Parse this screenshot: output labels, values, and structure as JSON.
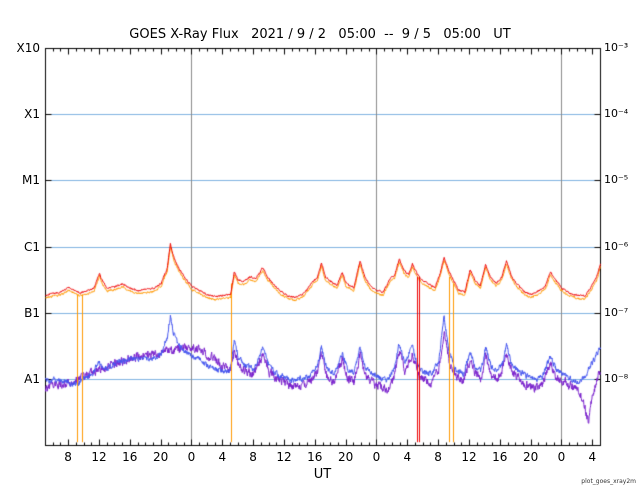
{
  "title": "GOES X-Ray Flux   2021 / 9 / 2   05:00  --  9 / 5   05:00   UT",
  "xlabel": "UT",
  "watermark": "plot_goes_xray2m",
  "colors": {
    "long_primary": "#ee0000",
    "long_secondary": "#ff9900",
    "short_primary": "#4455ee",
    "short_secondary": "#7a22cc",
    "hgrid": "#7fb2e0",
    "day_grid": "#8a8a8a",
    "frame": "#000000",
    "background": "#ffffff"
  },
  "axes": {
    "x_range_hours": [
      0,
      72
    ],
    "y_log_range": [
      -9,
      -3
    ],
    "left_labels": [
      {
        "text": "X10",
        "log": -3
      },
      {
        "text": "X1",
        "log": -4
      },
      {
        "text": "M1",
        "log": -5
      },
      {
        "text": "C1",
        "log": -6
      },
      {
        "text": "B1",
        "log": -7
      },
      {
        "text": "A1",
        "log": -8
      }
    ],
    "right_labels": [
      {
        "text": "10⁻³",
        "log": -3
      },
      {
        "text": "10⁻⁴",
        "log": -4
      },
      {
        "text": "10⁻⁵",
        "log": -5
      },
      {
        "text": "10⁻⁶",
        "log": -6
      },
      {
        "text": "10⁻⁷",
        "log": -7
      },
      {
        "text": "10⁻⁸",
        "log": -8
      }
    ],
    "x_ticks": [
      {
        "hour": 3,
        "label": "8"
      },
      {
        "hour": 7,
        "label": "12"
      },
      {
        "hour": 11,
        "label": "16"
      },
      {
        "hour": 15,
        "label": "20"
      },
      {
        "hour": 19,
        "label": "0"
      },
      {
        "hour": 23,
        "label": "4"
      },
      {
        "hour": 27,
        "label": "8"
      },
      {
        "hour": 31,
        "label": "12"
      },
      {
        "hour": 35,
        "label": "16"
      },
      {
        "hour": 39,
        "label": "20"
      },
      {
        "hour": 43,
        "label": "0"
      },
      {
        "hour": 47,
        "label": "4"
      },
      {
        "hour": 51,
        "label": "8"
      },
      {
        "hour": 55,
        "label": "12"
      },
      {
        "hour": 59,
        "label": "16"
      },
      {
        "hour": 63,
        "label": "20"
      },
      {
        "hour": 67,
        "label": "0"
      },
      {
        "hour": 71,
        "label": "4"
      }
    ],
    "day_lines_hours": [
      19,
      43,
      67
    ],
    "hgrid_logs": [
      -4,
      -5,
      -6,
      -7,
      -8
    ]
  },
  "chart_data": {
    "type": "line",
    "x_definition": "hours after 2021-09-02 05:00 UT (range of plot, 72 h total)",
    "y_definition": "log10 of X-ray flux, W/m^2, log axis 10^-9 .. 10^-3",
    "series": [
      {
        "name": "short-secondary",
        "color": "#7a22cc",
        "noise": 0.11,
        "points": [
          [
            0,
            -8.12
          ],
          [
            1,
            -8.1
          ],
          [
            2,
            -8.08
          ],
          [
            3,
            -8.05
          ],
          [
            4,
            -8.02
          ],
          [
            5,
            -7.96
          ],
          [
            6,
            -7.9
          ],
          [
            7,
            -7.85
          ],
          [
            8,
            -7.82
          ],
          [
            9,
            -7.76
          ],
          [
            10,
            -7.72
          ],
          [
            11,
            -7.68
          ],
          [
            12,
            -7.66
          ],
          [
            13,
            -7.63
          ],
          [
            14,
            -7.61
          ],
          [
            15,
            -7.59
          ],
          [
            16,
            -7.57
          ],
          [
            17,
            -7.55
          ],
          [
            18,
            -7.53
          ],
          [
            19,
            -7.52
          ],
          [
            20,
            -7.55
          ],
          [
            21,
            -7.62
          ],
          [
            22,
            -7.7
          ],
          [
            23,
            -7.8
          ],
          [
            24,
            -7.88
          ],
          [
            24.5,
            -7.55
          ],
          [
            25,
            -7.78
          ],
          [
            26,
            -7.88
          ],
          [
            27,
            -7.92
          ],
          [
            28.2,
            -7.62
          ],
          [
            29,
            -7.88
          ],
          [
            30,
            -7.98
          ],
          [
            31,
            -8.05
          ],
          [
            32,
            -8.12
          ],
          [
            33,
            -8.08
          ],
          [
            34,
            -8.05
          ],
          [
            35.3,
            -7.9
          ],
          [
            35.8,
            -7.6
          ],
          [
            36.5,
            -7.95
          ],
          [
            37.5,
            -8.05
          ],
          [
            38.5,
            -7.7
          ],
          [
            39.2,
            -7.98
          ],
          [
            40,
            -8.05
          ],
          [
            40.8,
            -7.62
          ],
          [
            41.5,
            -7.95
          ],
          [
            42.5,
            -8.05
          ],
          [
            43.5,
            -8.1
          ],
          [
            44.5,
            -8.15
          ],
          [
            45.3,
            -7.92
          ],
          [
            45.9,
            -7.56
          ],
          [
            46.6,
            -7.88
          ],
          [
            47.6,
            -7.6
          ],
          [
            48.3,
            -7.92
          ],
          [
            49,
            -8.0
          ],
          [
            50,
            -8.05
          ],
          [
            51,
            -7.85
          ],
          [
            51.7,
            -7.28
          ],
          [
            52.4,
            -7.75
          ],
          [
            53.2,
            -7.95
          ],
          [
            54.2,
            -8.02
          ],
          [
            55.1,
            -7.7
          ],
          [
            55.8,
            -7.92
          ],
          [
            56.5,
            -8.0
          ],
          [
            57.1,
            -7.64
          ],
          [
            57.8,
            -7.92
          ],
          [
            58.6,
            -8.0
          ],
          [
            59.3,
            -7.85
          ],
          [
            59.8,
            -7.6
          ],
          [
            60.5,
            -7.9
          ],
          [
            61.5,
            -8.0
          ],
          [
            62.5,
            -8.08
          ],
          [
            63.5,
            -8.12
          ],
          [
            64.5,
            -8.08
          ],
          [
            65.5,
            -7.75
          ],
          [
            66.2,
            -7.95
          ],
          [
            67,
            -8.02
          ],
          [
            68,
            -8.08
          ],
          [
            69,
            -8.15
          ],
          [
            69.8,
            -8.3
          ],
          [
            70.4,
            -8.65
          ],
          [
            71,
            -8.2
          ],
          [
            71.5,
            -8.05
          ],
          [
            72,
            -7.85
          ]
        ]
      },
      {
        "name": "short-primary",
        "color": "#4455ee",
        "noise": 0.07,
        "points": [
          [
            0,
            -8.03
          ],
          [
            1,
            -8.0
          ],
          [
            2,
            -8.02
          ],
          [
            3,
            -8.05
          ],
          [
            4,
            -8.08
          ],
          [
            5,
            -7.98
          ],
          [
            6,
            -7.92
          ],
          [
            7,
            -7.76
          ],
          [
            7.5,
            -7.85
          ],
          [
            8,
            -7.83
          ],
          [
            9,
            -7.76
          ],
          [
            10,
            -7.72
          ],
          [
            11,
            -7.7
          ],
          [
            12,
            -7.68
          ],
          [
            13,
            -7.68
          ],
          [
            14,
            -7.67
          ],
          [
            15,
            -7.62
          ],
          [
            15.8,
            -7.35
          ],
          [
            16.2,
            -7.02
          ],
          [
            16.6,
            -7.3
          ],
          [
            17.2,
            -7.48
          ],
          [
            18,
            -7.57
          ],
          [
            19,
            -7.64
          ],
          [
            20,
            -7.7
          ],
          [
            21,
            -7.78
          ],
          [
            22,
            -7.83
          ],
          [
            23,
            -7.87
          ],
          [
            24,
            -7.89
          ],
          [
            24.5,
            -7.42
          ],
          [
            25,
            -7.65
          ],
          [
            26,
            -7.8
          ],
          [
            27,
            -7.85
          ],
          [
            28.2,
            -7.52
          ],
          [
            29,
            -7.8
          ],
          [
            30,
            -7.92
          ],
          [
            31,
            -7.97
          ],
          [
            32,
            -8.02
          ],
          [
            33,
            -8.0
          ],
          [
            34,
            -7.98
          ],
          [
            35.3,
            -7.8
          ],
          [
            35.8,
            -7.52
          ],
          [
            36.5,
            -7.85
          ],
          [
            37.5,
            -7.92
          ],
          [
            38.5,
            -7.6
          ],
          [
            39.2,
            -7.85
          ],
          [
            40,
            -7.9
          ],
          [
            40.8,
            -7.53
          ],
          [
            41.5,
            -7.82
          ],
          [
            42.5,
            -7.92
          ],
          [
            43.5,
            -7.98
          ],
          [
            44.5,
            -8.02
          ],
          [
            45.3,
            -7.8
          ],
          [
            45.9,
            -7.44
          ],
          [
            46.6,
            -7.75
          ],
          [
            47.6,
            -7.5
          ],
          [
            48.3,
            -7.8
          ],
          [
            49,
            -7.88
          ],
          [
            50,
            -7.92
          ],
          [
            51,
            -7.75
          ],
          [
            51.7,
            -7.06
          ],
          [
            52.4,
            -7.6
          ],
          [
            53.2,
            -7.85
          ],
          [
            54.2,
            -7.92
          ],
          [
            55.1,
            -7.59
          ],
          [
            55.8,
            -7.82
          ],
          [
            56.5,
            -7.88
          ],
          [
            57.1,
            -7.53
          ],
          [
            57.8,
            -7.8
          ],
          [
            58.6,
            -7.88
          ],
          [
            59.3,
            -7.75
          ],
          [
            59.8,
            -7.48
          ],
          [
            60.5,
            -7.78
          ],
          [
            61.5,
            -7.88
          ],
          [
            62.5,
            -7.95
          ],
          [
            63.5,
            -8.0
          ],
          [
            64.5,
            -7.95
          ],
          [
            65.5,
            -7.65
          ],
          [
            66.2,
            -7.85
          ],
          [
            67,
            -7.92
          ],
          [
            68,
            -7.98
          ],
          [
            69,
            -8.04
          ],
          [
            70,
            -7.95
          ],
          [
            71,
            -7.72
          ],
          [
            72,
            -7.53
          ]
        ]
      },
      {
        "name": "long-secondary",
        "color": "#ff9900",
        "noise": 0.026,
        "points_ref": "long-primary",
        "log_offset": -0.045
      },
      {
        "name": "long-primary",
        "color": "#ee0000",
        "noise": 0.022,
        "points": [
          [
            0,
            -6.73
          ],
          [
            1,
            -6.7
          ],
          [
            2,
            -6.68
          ],
          [
            3,
            -6.61
          ],
          [
            3.8,
            -6.66
          ],
          [
            4.5,
            -6.69
          ],
          [
            5.5,
            -6.66
          ],
          [
            6.3,
            -6.62
          ],
          [
            7,
            -6.4
          ],
          [
            7.4,
            -6.52
          ],
          [
            8,
            -6.62
          ],
          [
            9,
            -6.6
          ],
          [
            10,
            -6.56
          ],
          [
            11,
            -6.62
          ],
          [
            12,
            -6.66
          ],
          [
            13,
            -6.64
          ],
          [
            14,
            -6.63
          ],
          [
            15,
            -6.55
          ],
          [
            15.8,
            -6.32
          ],
          [
            16.2,
            -5.95
          ],
          [
            16.6,
            -6.14
          ],
          [
            17.2,
            -6.3
          ],
          [
            18,
            -6.45
          ],
          [
            19,
            -6.6
          ],
          [
            20,
            -6.66
          ],
          [
            21,
            -6.72
          ],
          [
            22,
            -6.75
          ],
          [
            23,
            -6.73
          ],
          [
            24,
            -6.72
          ],
          [
            24.5,
            -6.38
          ],
          [
            25,
            -6.5
          ],
          [
            25.8,
            -6.52
          ],
          [
            26.5,
            -6.45
          ],
          [
            27.3,
            -6.48
          ],
          [
            28.2,
            -6.31
          ],
          [
            28.8,
            -6.45
          ],
          [
            29.5,
            -6.55
          ],
          [
            30.5,
            -6.67
          ],
          [
            31.5,
            -6.74
          ],
          [
            32.5,
            -6.76
          ],
          [
            33.5,
            -6.7
          ],
          [
            34.5,
            -6.55
          ],
          [
            35.3,
            -6.45
          ],
          [
            35.8,
            -6.23
          ],
          [
            36.3,
            -6.45
          ],
          [
            37,
            -6.52
          ],
          [
            37.8,
            -6.58
          ],
          [
            38.5,
            -6.38
          ],
          [
            39,
            -6.55
          ],
          [
            40,
            -6.62
          ],
          [
            40.8,
            -6.21
          ],
          [
            41.4,
            -6.45
          ],
          [
            42.2,
            -6.6
          ],
          [
            43,
            -6.66
          ],
          [
            43.8,
            -6.68
          ],
          [
            44.6,
            -6.5
          ],
          [
            45.3,
            -6.42
          ],
          [
            45.9,
            -6.18
          ],
          [
            46.5,
            -6.35
          ],
          [
            47.1,
            -6.42
          ],
          [
            47.6,
            -6.26
          ],
          [
            48.2,
            -6.4
          ],
          [
            48.8,
            -6.5
          ],
          [
            49.6,
            -6.55
          ],
          [
            50.5,
            -6.62
          ],
          [
            51.2,
            -6.4
          ],
          [
            51.7,
            -6.16
          ],
          [
            52.3,
            -6.35
          ],
          [
            52.9,
            -6.5
          ],
          [
            53.6,
            -6.65
          ],
          [
            54.4,
            -6.68
          ],
          [
            55.1,
            -6.34
          ],
          [
            55.7,
            -6.5
          ],
          [
            56.4,
            -6.58
          ],
          [
            57.1,
            -6.27
          ],
          [
            57.7,
            -6.45
          ],
          [
            58.5,
            -6.55
          ],
          [
            59.2,
            -6.45
          ],
          [
            59.8,
            -6.22
          ],
          [
            60.5,
            -6.45
          ],
          [
            61.3,
            -6.58
          ],
          [
            62.2,
            -6.68
          ],
          [
            63,
            -6.72
          ],
          [
            64,
            -6.66
          ],
          [
            64.8,
            -6.6
          ],
          [
            65.5,
            -6.38
          ],
          [
            66.2,
            -6.5
          ],
          [
            67,
            -6.62
          ],
          [
            68,
            -6.7
          ],
          [
            69,
            -6.73
          ],
          [
            70,
            -6.74
          ],
          [
            70.8,
            -6.6
          ],
          [
            71.5,
            -6.45
          ],
          [
            72,
            -6.26
          ]
        ]
      }
    ],
    "dropouts": [
      {
        "color": "#ff9900",
        "hour": 4.15,
        "top_log": -6.72,
        "bottom_log": -8.95
      },
      {
        "color": "#ff9900",
        "hour": 4.75,
        "top_log": -6.72,
        "bottom_log": -8.95
      },
      {
        "color": "#ff9900",
        "hour": 24.1,
        "top_log": -6.55,
        "bottom_log": -8.95
      },
      {
        "color": "#ee0000",
        "hour": 48.25,
        "top_log": -6.45,
        "bottom_log": -8.95
      },
      {
        "color": "#ee0000",
        "hour": 48.55,
        "top_log": -6.45,
        "bottom_log": -8.95
      },
      {
        "color": "#ff9900",
        "hour": 52.45,
        "top_log": -6.45,
        "bottom_log": -8.95
      },
      {
        "color": "#ff9900",
        "hour": 52.95,
        "top_log": -6.55,
        "bottom_log": -8.95
      }
    ]
  }
}
